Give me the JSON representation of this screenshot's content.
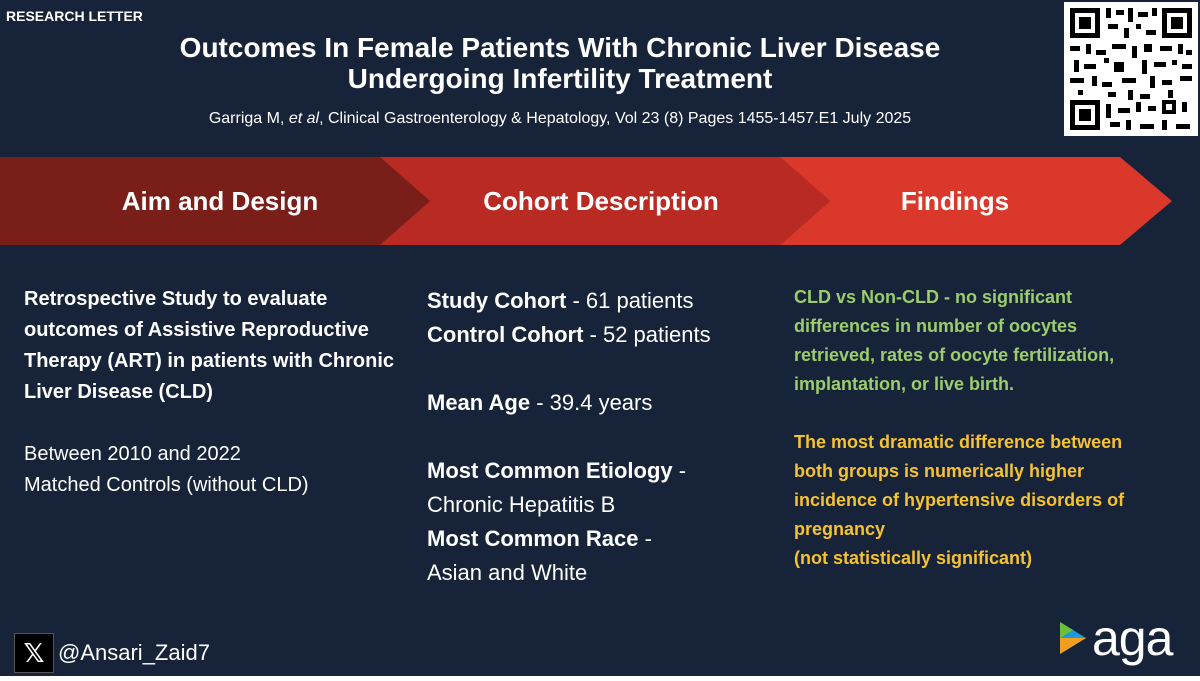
{
  "header": {
    "tag": "RESEARCH LETTER",
    "title_line1": "Outcomes In Female Patients With Chronic Liver Disease",
    "title_line2": "Undergoing Infertility Treatment",
    "citation_pre": "Garriga M, ",
    "citation_etal": "et al",
    "citation_post": ", Clinical Gastroenterology & Hepatology, Vol 23 (8) Pages 1455-1457.E1  July 2025"
  },
  "banner": {
    "colors": [
      "#7a1e1a",
      "#b92b22",
      "#d9382b"
    ],
    "items": [
      {
        "label": "Aim and Design"
      },
      {
        "label": "Cohort Description"
      },
      {
        "label": "Findings"
      }
    ]
  },
  "aim": {
    "bold_text": "Retrospective Study to evaluate outcomes of Assistive Reproductive Therapy (ART) in patients with Chronic Liver Disease (CLD)",
    "line1": "Between 2010 and 2022",
    "line2": "Matched Controls (without CLD)"
  },
  "cohort": {
    "study_label": "Study Cohort",
    "study_value": " - 61 patients",
    "control_label": "Control Cohort",
    "control_value": " - 52 patients",
    "age_label": "Mean Age",
    "age_value": " - 39.4 years",
    "etiology_label": "Most Common Etiology",
    "etiology_dash": " -",
    "etiology_value": "Chronic Hepatitis B",
    "race_label": "Most Common Race",
    "race_dash": " -",
    "race_value": "Asian and White"
  },
  "findings": {
    "green_text": "CLD vs Non-CLD - no significant differences in number of oocytes retrieved, rates of oocyte fertilization, implantation, or live birth.",
    "yellow_text": "The most dramatic difference between both groups is numerically higher incidence of hypertensive disorders of pregnancy",
    "yellow_note": "(not statistically significant)"
  },
  "footer": {
    "handle": "@Ansari_Zaid7",
    "x_icon": "x-logo-icon",
    "logo_text": "aga"
  }
}
